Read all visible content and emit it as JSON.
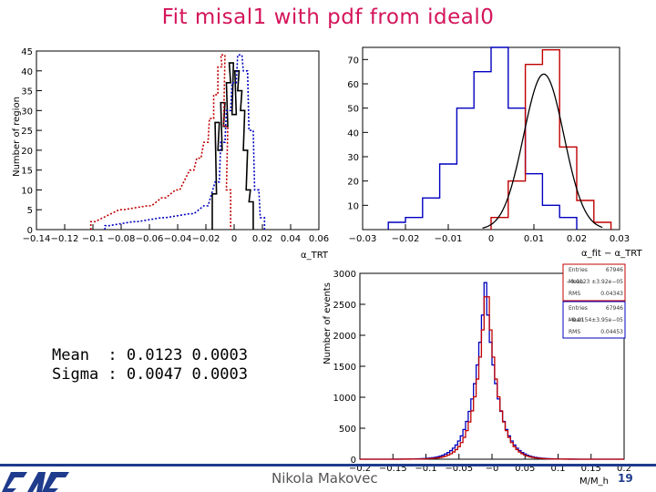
{
  "slide": {
    "title": "Fit misal1 with pdf from ideal0",
    "author": "Nikola Makovec",
    "page_number": "19",
    "logo_text": "CAC",
    "fit_mean_line": "Mean  : 0.0123 0.0003",
    "fit_sigma_line": "Sigma : 0.0047 0.0003",
    "colors": {
      "title": "#d4145a",
      "accent": "#1f3b8c"
    }
  },
  "chart_data": [
    {
      "id": "left",
      "type": "line",
      "ylabel": "Number of region",
      "xlabel": "α_TRT",
      "xlim": [
        -0.14,
        0.06
      ],
      "ylim": [
        0,
        45
      ],
      "x_ticks": [
        "−0.14",
        "−0.12",
        "−0.1",
        "−0.08",
        "−0.06",
        "−0.04",
        "−0.02",
        "0",
        "0.02",
        "0.04",
        "0.06"
      ],
      "y_ticks": [
        "0",
        "5",
        "10",
        "15",
        "20",
        "25",
        "30",
        "35",
        "40",
        "45"
      ],
      "series": [
        {
          "name": "black",
          "color": "#000000",
          "style": "solid",
          "bins": [
            -0.014,
            -0.012,
            -0.01,
            -0.008,
            -0.006,
            -0.004,
            -0.002,
            0.0,
            0.002,
            0.004,
            0.006,
            0.008,
            0.01,
            0.012
          ],
          "values": [
            9,
            27,
            20,
            32,
            26,
            37,
            42,
            29,
            40,
            35,
            30,
            20,
            10,
            7
          ]
        },
        {
          "name": "red",
          "color": "#c00000",
          "style": "dotted",
          "bins": [
            -0.1,
            -0.08,
            -0.06,
            -0.05,
            -0.04,
            -0.03,
            -0.025,
            -0.02,
            -0.016,
            -0.013,
            -0.01,
            -0.008,
            -0.006,
            -0.004
          ],
          "values": [
            2,
            5,
            6,
            8,
            10,
            15,
            18,
            22,
            28,
            34,
            41,
            44,
            26,
            10
          ]
        },
        {
          "name": "blue",
          "color": "#0000c0",
          "style": "dotted",
          "bins": [
            -0.09,
            -0.07,
            -0.05,
            -0.03,
            -0.02,
            -0.012,
            -0.008,
            -0.004,
            0.0,
            0.004,
            0.008,
            0.012,
            0.016,
            0.02
          ],
          "values": [
            1,
            2,
            3,
            4,
            6,
            12,
            22,
            30,
            37,
            44,
            40,
            25,
            10,
            3
          ]
        }
      ]
    },
    {
      "id": "right-top",
      "type": "line",
      "xlabel": "α_fit − α_TRT",
      "xlim": [
        -0.03,
        0.03
      ],
      "ylim": [
        0,
        75
      ],
      "x_ticks": [
        "−0.03",
        "−0.02",
        "−0.01",
        "0",
        "0.01",
        "0.02",
        "0.03"
      ],
      "y_ticks": [
        "10",
        "20",
        "30",
        "40",
        "50",
        "60",
        "70"
      ],
      "fit_gauss": {
        "mean": 0.0123,
        "sigma": 0.0047,
        "amplitude": 64
      },
      "series": [
        {
          "name": "blue",
          "color": "#0000c0",
          "style": "solid",
          "bins": [
            -0.022,
            -0.018,
            -0.014,
            -0.01,
            -0.006,
            -0.002,
            0.002,
            0.006,
            0.01,
            0.014,
            0.018
          ],
          "values": [
            3,
            5,
            13,
            27,
            50,
            65,
            75,
            50,
            23,
            10,
            5
          ]
        },
        {
          "name": "red",
          "color": "#c00000",
          "style": "solid",
          "bins": [
            0.002,
            0.006,
            0.01,
            0.014,
            0.018,
            0.022,
            0.026
          ],
          "values": [
            5,
            20,
            68,
            74,
            34,
            12,
            3
          ]
        }
      ]
    },
    {
      "id": "right-bottom",
      "type": "line",
      "ylabel": "Number of events",
      "xlabel": "M/M_h",
      "xlim": [
        -0.2,
        0.2
      ],
      "ylim": [
        0,
        3000
      ],
      "x_ticks": [
        "−0.2",
        "−0.15",
        "−0.1",
        "−0.05",
        "−0",
        "0.05",
        "0.1",
        "0.15",
        "0.2"
      ],
      "y_ticks": [
        "0",
        "500",
        "1000",
        "1500",
        "2000",
        "2500",
        "3000"
      ],
      "stat_boxes": [
        {
          "entries": "Entries",
          "entries_val": "67946",
          "mean": "Mean",
          "mean_val": "−0.0123 ±3.92e−05",
          "rms": "RMS",
          "rms_val": "0.04343"
        },
        {
          "entries": "Entries",
          "entries_val": "67946",
          "mean": "Mean",
          "mean_val": "−0.0154±3.95e−05",
          "rms": "RMS",
          "rms_val": "0.04453"
        }
      ],
      "series": [
        {
          "name": "blue",
          "color": "#0000c0",
          "style": "solid",
          "center": -0.012,
          "width": 0.032,
          "peak": 2850
        },
        {
          "name": "red",
          "color": "#c00000",
          "style": "solid",
          "center": -0.01,
          "width": 0.029,
          "peak": 2930
        }
      ]
    }
  ]
}
